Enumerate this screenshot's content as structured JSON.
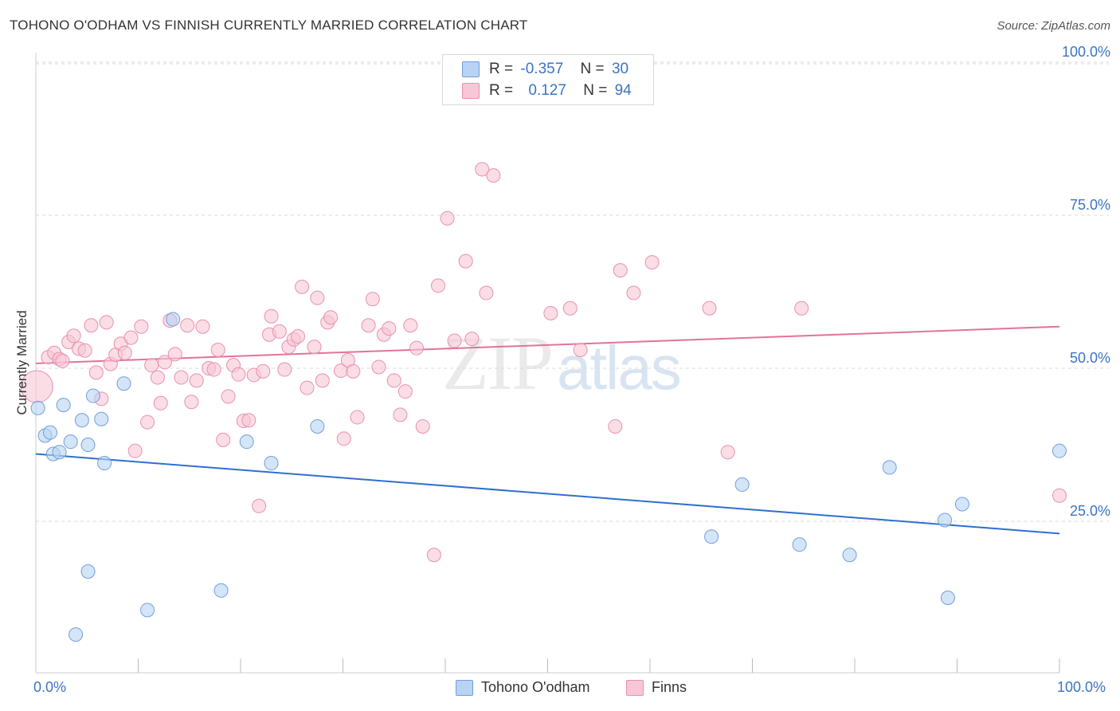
{
  "title": "TOHONO O'ODHAM VS FINNISH CURRENTLY MARRIED CORRELATION CHART",
  "source": "Source: ZipAtlas.com",
  "watermark": {
    "zip": "ZIP",
    "atlas": "atlas"
  },
  "stats": {
    "rows": [
      {
        "r_label": "R =",
        "r_value": "-0.357",
        "n_label": "N =",
        "n_value": "30"
      },
      {
        "r_label": "R =",
        "r_value": "0.127",
        "n_label": "N =",
        "n_value": "94"
      }
    ]
  },
  "legend": {
    "items": [
      "Tohono O'odham",
      "Finns"
    ]
  },
  "colors": {
    "blue_fill": "#b8d3f3",
    "blue_stroke": "#6f9fdc",
    "blue_line": "#2f6fce",
    "pink_fill": "#f8c6d6",
    "pink_stroke": "#e891ad",
    "pink_line": "#e4719a",
    "grid": "#d8d8d8",
    "tick_text": "#3b74c4"
  },
  "chart_data": {
    "type": "scatter",
    "title": "TOHONO O'ODHAM VS FINNISH CURRENTLY MARRIED CORRELATION CHART",
    "xlabel": "",
    "ylabel": "Currently Married",
    "xlim": [
      0,
      100
    ],
    "ylim": [
      0,
      104
    ],
    "x_tick_labels": [
      "0.0%",
      "100.0%"
    ],
    "y_ticks": [
      {
        "value": 25,
        "label": "25.0%"
      },
      {
        "value": 50,
        "label": "50.0%"
      },
      {
        "value": 75,
        "label": "75.0%"
      },
      {
        "value": 100,
        "label": "100.0%"
      }
    ],
    "grid": "horizontal-dashed",
    "legend_position": "bottom-center",
    "series": [
      {
        "name": "Tohono O'odham",
        "color": "#b8d3f3",
        "trend": {
          "x": [
            0,
            100
          ],
          "y": [
            36.0,
            23.0
          ]
        },
        "points": [
          [
            0.2,
            43.5
          ],
          [
            0.9,
            39.0
          ],
          [
            1.4,
            39.5
          ],
          [
            1.7,
            36.0
          ],
          [
            2.3,
            36.3
          ],
          [
            2.7,
            44.0
          ],
          [
            3.4,
            38.0
          ],
          [
            4.5,
            41.5
          ],
          [
            5.1,
            37.5
          ],
          [
            5.6,
            45.5
          ],
          [
            6.4,
            41.7
          ],
          [
            6.7,
            34.5
          ],
          [
            8.6,
            47.5
          ],
          [
            13.4,
            58.0
          ],
          [
            10.9,
            10.5
          ],
          [
            18.1,
            13.7
          ],
          [
            5.1,
            16.8
          ],
          [
            3.9,
            6.5
          ],
          [
            20.6,
            38.0
          ],
          [
            23.0,
            34.5
          ],
          [
            27.5,
            40.5
          ],
          [
            66.0,
            22.5
          ],
          [
            69.0,
            31.0
          ],
          [
            74.6,
            21.2
          ],
          [
            79.5,
            19.5
          ],
          [
            83.4,
            33.8
          ],
          [
            88.8,
            25.2
          ],
          [
            89.1,
            12.5
          ],
          [
            90.5,
            27.8
          ],
          [
            100.0,
            36.5
          ]
        ]
      },
      {
        "name": "Finns",
        "color": "#f8c6d6",
        "trend": {
          "x": [
            0,
            100
          ],
          "y": [
            50.8,
            56.8
          ]
        },
        "points": [
          [
            0.1,
            47.0
          ],
          [
            1.2,
            51.8
          ],
          [
            1.8,
            52.5
          ],
          [
            2.3,
            51.5
          ],
          [
            2.6,
            51.2
          ],
          [
            3.2,
            54.3
          ],
          [
            3.7,
            55.3
          ],
          [
            4.2,
            53.2
          ],
          [
            4.8,
            52.9
          ],
          [
            5.4,
            57.0
          ],
          [
            5.9,
            49.3
          ],
          [
            6.4,
            45.0
          ],
          [
            6.9,
            57.5
          ],
          [
            7.3,
            50.7
          ],
          [
            7.8,
            52.2
          ],
          [
            8.3,
            54.0
          ],
          [
            8.7,
            52.5
          ],
          [
            9.3,
            55.0
          ],
          [
            9.7,
            36.5
          ],
          [
            10.3,
            56.8
          ],
          [
            10.9,
            41.2
          ],
          [
            11.3,
            50.5
          ],
          [
            11.9,
            48.5
          ],
          [
            12.2,
            44.3
          ],
          [
            12.6,
            51.0
          ],
          [
            13.1,
            57.8
          ],
          [
            13.6,
            52.3
          ],
          [
            14.2,
            48.5
          ],
          [
            14.8,
            57.0
          ],
          [
            15.2,
            44.5
          ],
          [
            15.7,
            48.0
          ],
          [
            16.3,
            56.8
          ],
          [
            16.9,
            50.0
          ],
          [
            17.4,
            49.8
          ],
          [
            17.8,
            53.0
          ],
          [
            18.3,
            38.3
          ],
          [
            18.8,
            45.4
          ],
          [
            19.3,
            50.5
          ],
          [
            19.8,
            49.0
          ],
          [
            20.3,
            41.4
          ],
          [
            20.8,
            41.5
          ],
          [
            21.3,
            48.9
          ],
          [
            21.8,
            27.5
          ],
          [
            22.2,
            49.5
          ],
          [
            22.8,
            55.5
          ],
          [
            23.0,
            58.5
          ],
          [
            23.8,
            56.0
          ],
          [
            24.3,
            49.8
          ],
          [
            24.7,
            53.5
          ],
          [
            25.2,
            54.7
          ],
          [
            25.6,
            55.2
          ],
          [
            26.0,
            63.3
          ],
          [
            26.5,
            46.8
          ],
          [
            27.2,
            53.5
          ],
          [
            27.5,
            61.5
          ],
          [
            28.0,
            48.0
          ],
          [
            28.5,
            57.5
          ],
          [
            28.8,
            58.3
          ],
          [
            29.8,
            49.6
          ],
          [
            30.5,
            51.3
          ],
          [
            31.0,
            49.5
          ],
          [
            31.4,
            42.0
          ],
          [
            32.5,
            57.0
          ],
          [
            32.9,
            61.3
          ],
          [
            33.5,
            50.2
          ],
          [
            34.0,
            55.5
          ],
          [
            34.5,
            56.5
          ],
          [
            35.0,
            48.0
          ],
          [
            35.6,
            42.4
          ],
          [
            36.1,
            46.2
          ],
          [
            36.6,
            57.0
          ],
          [
            37.2,
            53.3
          ],
          [
            37.8,
            40.5
          ],
          [
            38.9,
            19.5
          ],
          [
            39.3,
            63.5
          ],
          [
            40.2,
            74.5
          ],
          [
            40.9,
            54.5
          ],
          [
            42.0,
            67.5
          ],
          [
            42.6,
            54.8
          ],
          [
            43.6,
            82.5
          ],
          [
            44.0,
            62.3
          ],
          [
            44.7,
            81.5
          ],
          [
            50.3,
            59.0
          ],
          [
            52.2,
            59.8
          ],
          [
            53.2,
            53.0
          ],
          [
            56.6,
            40.5
          ],
          [
            57.1,
            66.0
          ],
          [
            58.4,
            62.3
          ],
          [
            60.2,
            67.3
          ],
          [
            65.8,
            59.8
          ],
          [
            67.6,
            36.3
          ],
          [
            74.8,
            59.8
          ],
          [
            100.0,
            29.2
          ],
          [
            30.1,
            38.5
          ]
        ]
      }
    ]
  }
}
